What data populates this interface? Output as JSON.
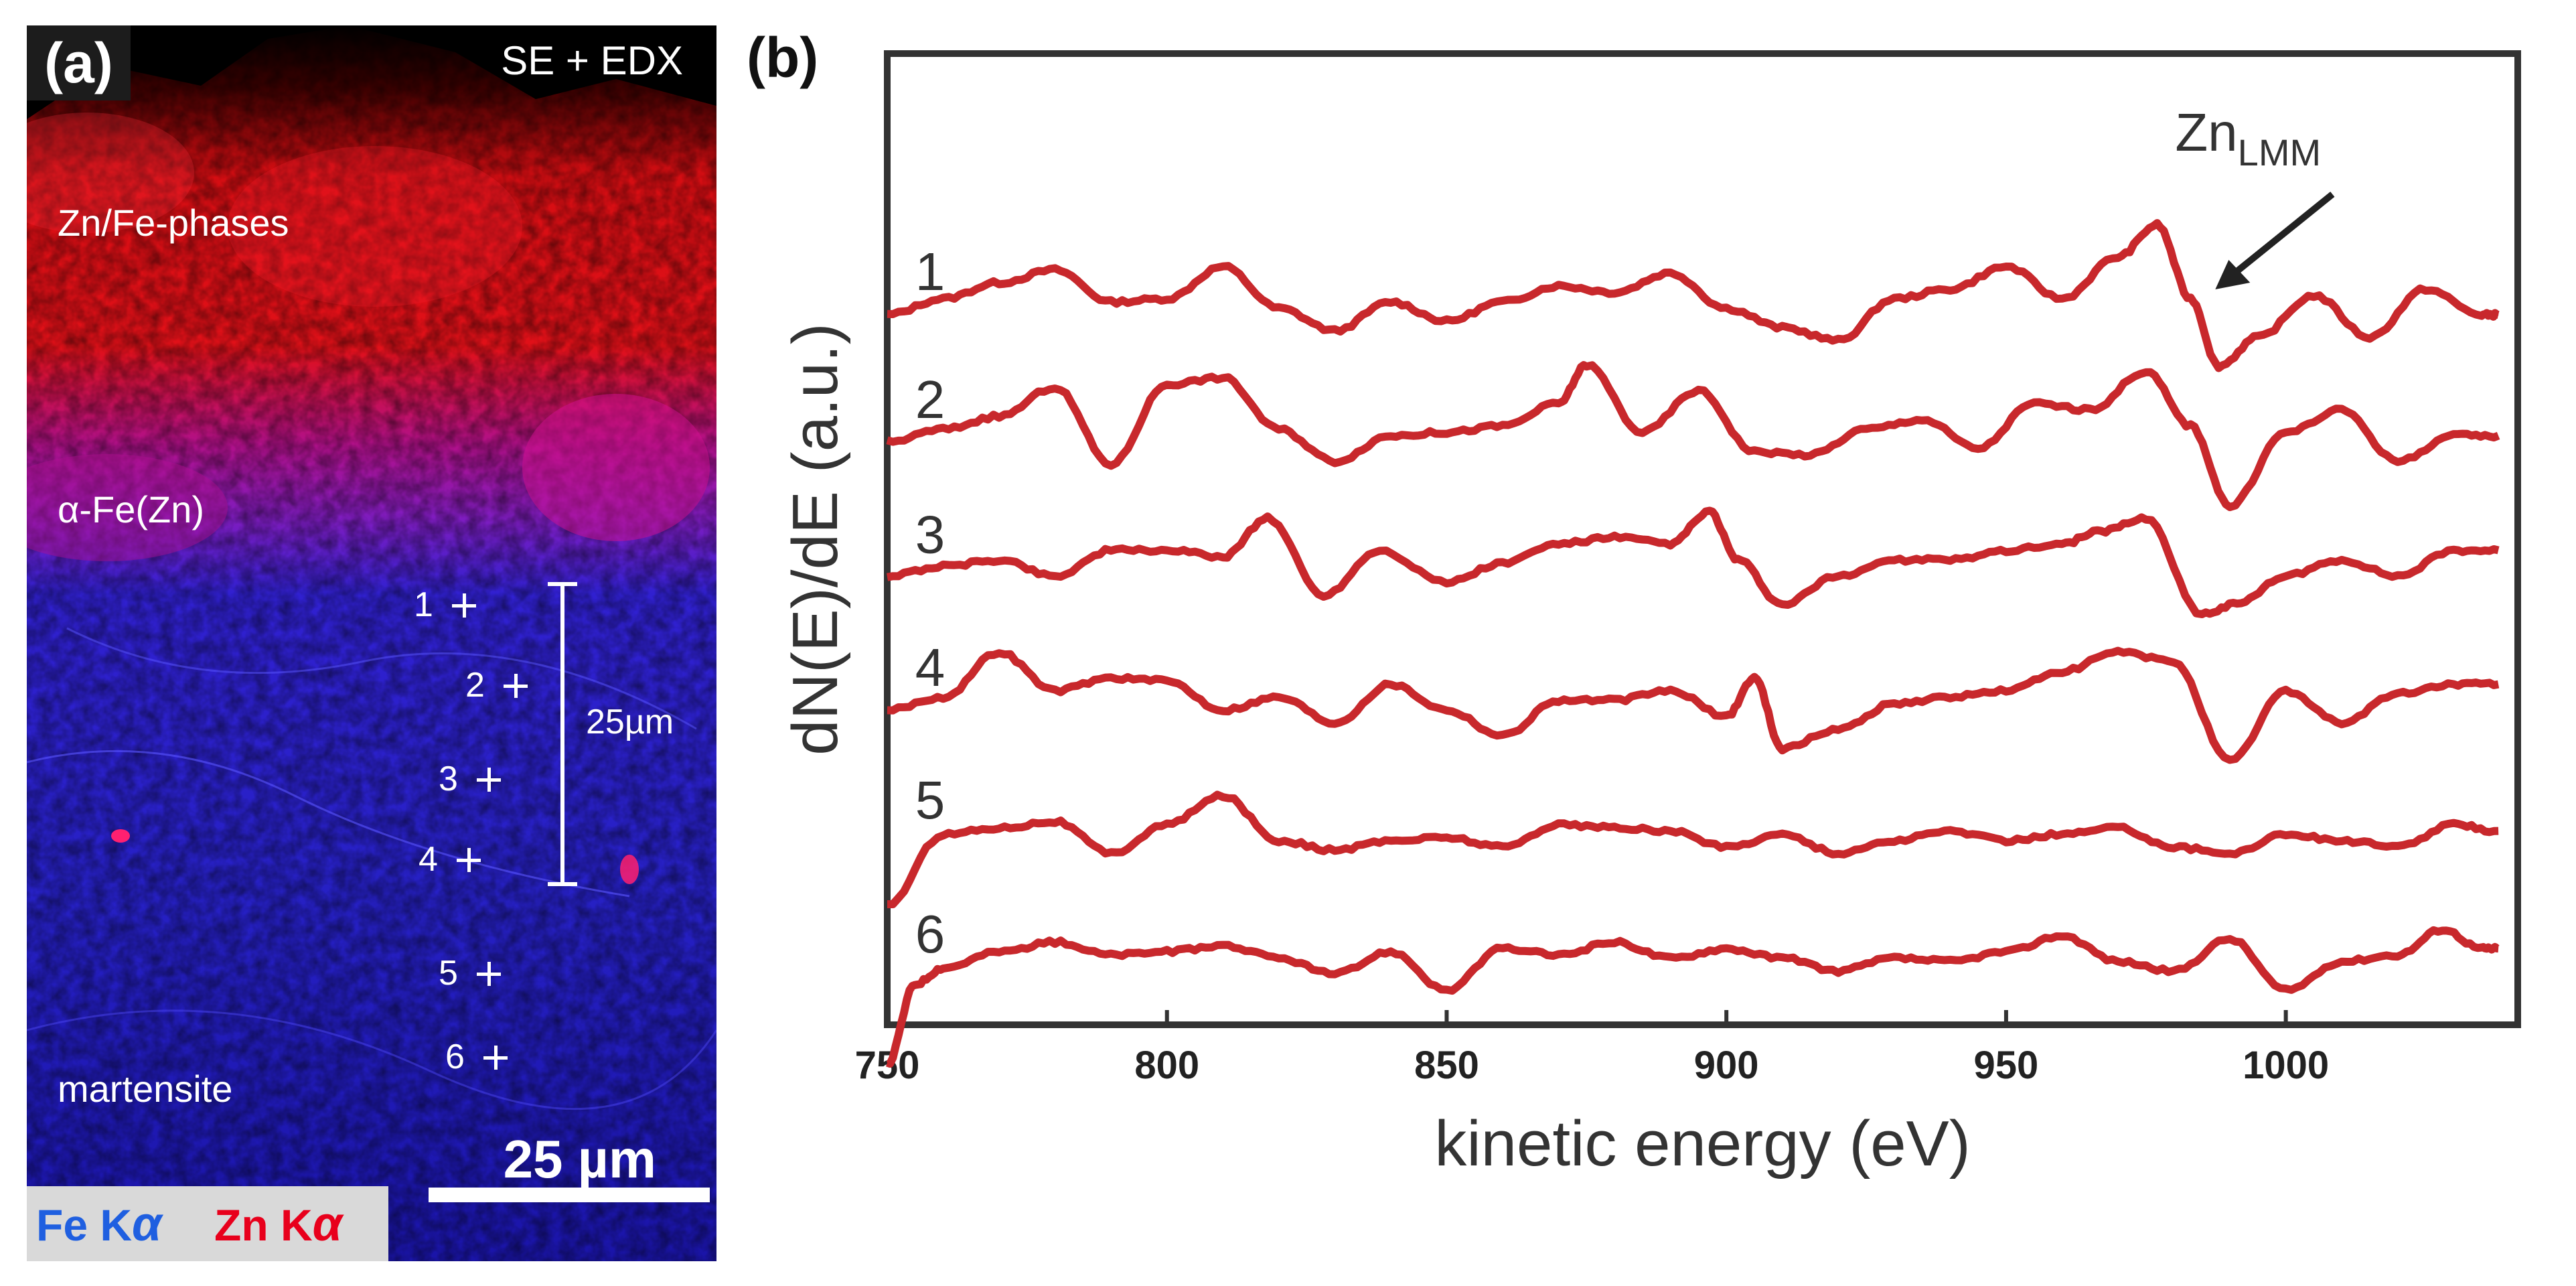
{
  "panel_a": {
    "letter": "(a)",
    "technique": "SE + EDX",
    "phases": {
      "zn_fe": "Zn/Fe-phases",
      "alpha_fe": "α-Fe(Zn)",
      "martensite": "martensite"
    },
    "points": [
      "1",
      "2",
      "3",
      "4",
      "5",
      "6"
    ],
    "bracket_label": "25µm",
    "scalebar_label": "25 µm",
    "legend": {
      "fe_label": "Fe K",
      "fe_sub": "α",
      "zn_label": "Zn K",
      "zn_sub": "α"
    },
    "colors": {
      "fe": "#2a3be8",
      "zn": "#ff1a1a",
      "fe_text": "#1f5fe0",
      "zn_text": "#e8001c"
    }
  },
  "panel_b": {
    "letter": "(b)",
    "peak_label": "Zn",
    "peak_sub": "LMM",
    "colors": {
      "trace": "#c8282c",
      "axis": "#333333"
    }
  },
  "chart_data": {
    "type": "line",
    "xlabel": "kinetic energy (eV)",
    "ylabel": "dN(E)/dE (a.u.)",
    "xlim": [
      750,
      1040
    ],
    "xticks": [
      750,
      800,
      850,
      900,
      950,
      1000
    ],
    "y_ticks_shown": false,
    "annotation": {
      "text": "Zn",
      "subscript": "LMM",
      "x": 985
    },
    "series": [
      {
        "name": "1",
        "x": [
          750,
          760,
          770,
          780,
          790,
          800,
          810,
          820,
          830,
          840,
          850,
          860,
          870,
          880,
          890,
          900,
          910,
          920,
          930,
          940,
          950,
          960,
          970,
          977,
          983,
          988,
          995,
          1005,
          1015,
          1025,
          1035,
          1038
        ],
        "y": [
          0.0,
          0.05,
          0.1,
          0.14,
          0.04,
          0.05,
          0.15,
          0.02,
          -0.05,
          0.04,
          -0.02,
          0.04,
          0.09,
          0.07,
          0.13,
          0.02,
          -0.04,
          -0.08,
          0.05,
          0.08,
          0.15,
          0.05,
          0.18,
          0.28,
          0.05,
          -0.16,
          -0.07,
          0.06,
          -0.07,
          0.08,
          0.0,
          0.0
        ]
      },
      {
        "name": "2",
        "x": [
          750,
          760,
          770,
          780,
          790,
          800,
          810,
          820,
          830,
          840,
          850,
          860,
          870,
          875,
          885,
          895,
          905,
          915,
          925,
          935,
          945,
          955,
          965,
          975,
          983,
          990,
          1000,
          1010,
          1020,
          1030,
          1038
        ],
        "y": [
          0.0,
          0.04,
          0.08,
          0.17,
          -0.07,
          0.18,
          0.2,
          0.04,
          -0.06,
          0.02,
          0.03,
          0.05,
          0.12,
          0.24,
          0.03,
          0.16,
          -0.03,
          -0.04,
          0.04,
          0.07,
          -0.02,
          0.12,
          0.1,
          0.22,
          0.05,
          -0.2,
          0.03,
          0.1,
          -0.06,
          0.02,
          0.02
        ]
      },
      {
        "name": "3",
        "x": [
          750,
          760,
          770,
          780,
          790,
          800,
          810,
          818,
          828,
          838,
          850,
          860,
          870,
          880,
          890,
          897,
          902,
          910,
          920,
          930,
          940,
          950,
          960,
          967,
          975,
          985,
          992,
          1000,
          1010,
          1020,
          1030,
          1038
        ],
        "y": [
          0.0,
          0.03,
          0.05,
          0.0,
          0.08,
          0.08,
          0.06,
          0.18,
          -0.06,
          0.08,
          -0.02,
          0.04,
          0.1,
          0.12,
          0.1,
          0.2,
          0.05,
          -0.09,
          0.0,
          0.05,
          0.05,
          0.08,
          0.1,
          0.14,
          0.18,
          -0.12,
          -0.08,
          0.0,
          0.05,
          0.0,
          0.08,
          0.08
        ]
      },
      {
        "name": "4",
        "x": [
          750,
          760,
          770,
          780,
          790,
          800,
          810,
          820,
          830,
          840,
          850,
          860,
          870,
          880,
          890,
          900,
          905,
          910,
          920,
          930,
          940,
          950,
          960,
          970,
          980,
          990,
          1000,
          1010,
          1020,
          1030,
          1038
        ],
        "y": [
          0.0,
          0.04,
          0.18,
          0.06,
          0.1,
          0.09,
          0.0,
          0.04,
          -0.04,
          0.08,
          0.0,
          -0.08,
          0.03,
          0.03,
          0.06,
          -0.02,
          0.1,
          -0.12,
          -0.06,
          0.02,
          0.04,
          0.06,
          0.12,
          0.18,
          0.15,
          -0.16,
          0.06,
          -0.04,
          0.05,
          0.08,
          0.08
        ]
      },
      {
        "name": "5",
        "x": [
          750,
          760,
          770,
          780,
          790,
          800,
          810,
          820,
          830,
          840,
          850,
          860,
          870,
          880,
          890,
          900,
          910,
          920,
          930,
          940,
          950,
          960,
          970,
          980,
          990,
          1000,
          1010,
          1020,
          1030,
          1038
        ],
        "y": [
          -0.2,
          0.02,
          0.04,
          0.06,
          -0.04,
          0.05,
          0.14,
          0.0,
          -0.03,
          0.0,
          0.01,
          -0.02,
          0.05,
          0.04,
          0.03,
          -0.02,
          0.02,
          -0.04,
          0.0,
          0.03,
          0.0,
          0.02,
          0.04,
          -0.02,
          -0.04,
          0.02,
          0.0,
          -0.02,
          0.05,
          0.03
        ]
      },
      {
        "name": "6",
        "x": [
          750,
          755,
          760,
          770,
          780,
          790,
          800,
          810,
          820,
          830,
          840,
          850,
          860,
          870,
          880,
          890,
          900,
          910,
          920,
          930,
          940,
          950,
          960,
          970,
          980,
          990,
          1000,
          1010,
          1020,
          1028,
          1035,
          1038
        ],
        "y": [
          -0.3,
          -0.05,
          0.0,
          0.05,
          0.08,
          0.04,
          0.05,
          0.07,
          0.03,
          -0.02,
          0.05,
          -0.07,
          0.06,
          0.04,
          0.08,
          0.03,
          0.06,
          0.03,
          -0.01,
          0.03,
          0.02,
          0.05,
          0.1,
          0.02,
          -0.01,
          0.09,
          -0.07,
          0.02,
          0.04,
          0.12,
          0.06,
          0.06
        ]
      }
    ]
  }
}
